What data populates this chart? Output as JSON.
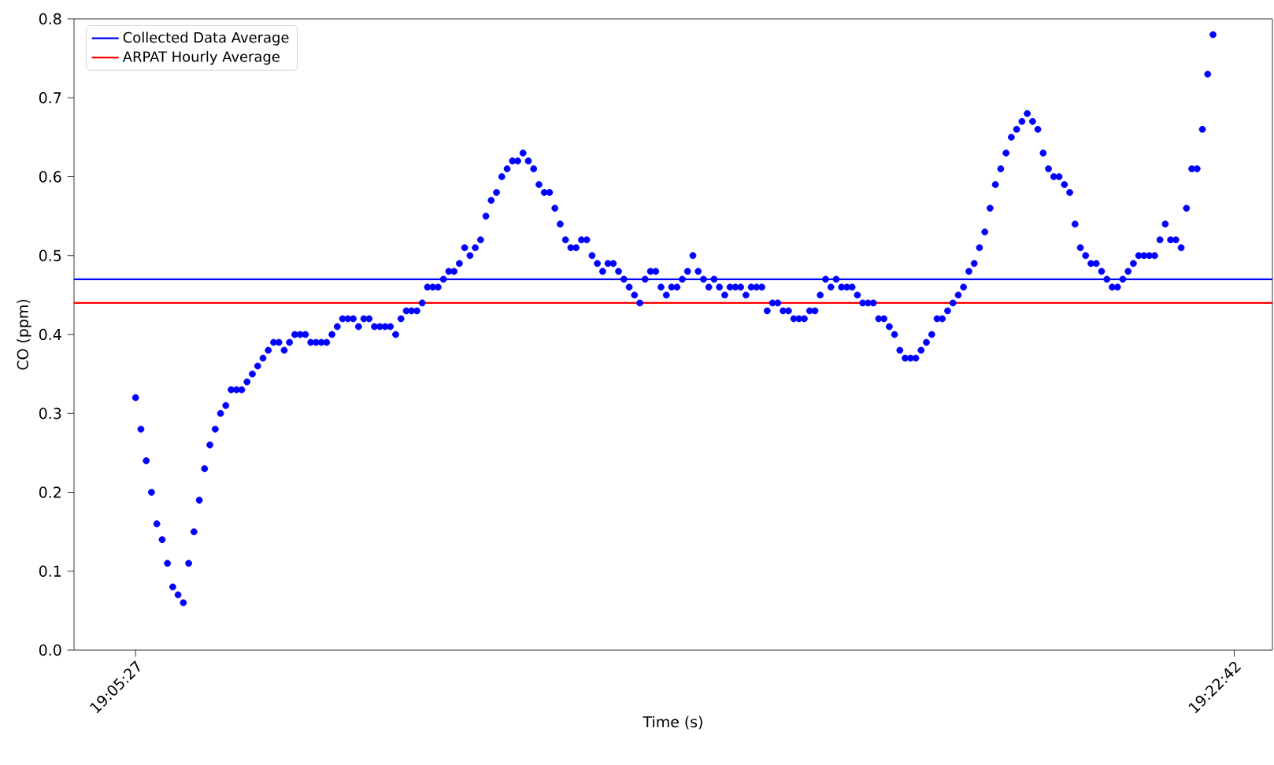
{
  "chart_data": {
    "type": "scatter",
    "xlabel": "Time (s)",
    "ylabel": "CO (ppm)",
    "xlim": [
      19.07472,
      19.38833
    ],
    "xticks": [
      {
        "value": 19.090833,
        "label": "19:05:27"
      },
      {
        "value": 19.378333,
        "label": "19:22:42"
      }
    ],
    "ylim": [
      0,
      0.8
    ],
    "yticks": [
      {
        "value": 0,
        "label": "0.0"
      },
      {
        "value": 0.1,
        "label": "0.1"
      },
      {
        "value": 0.2,
        "label": "0.2"
      },
      {
        "value": 0.3,
        "label": "0.3"
      },
      {
        "value": 0.4,
        "label": "0.4"
      },
      {
        "value": 0.5,
        "label": "0.5"
      },
      {
        "value": 0.6,
        "label": "0.6"
      },
      {
        "value": 0.7,
        "label": "0.7"
      },
      {
        "value": 0.8,
        "label": "0.8"
      }
    ],
    "grid": false,
    "legend": "top left",
    "marker": "circle",
    "ref_lines": [
      {
        "axis": "y",
        "value": 0.47,
        "label": "Collected Data Average",
        "color": "#0000ff"
      },
      {
        "axis": "y",
        "value": 0.44,
        "label": "ARPAT Hourly Average",
        "color": "#ff0000"
      }
    ],
    "series": [
      {
        "color": "#0000ff",
        "x": [
          19.09083,
          19.09222,
          19.09361,
          19.095,
          19.09639,
          19.09778,
          19.09917,
          19.10056,
          19.10194,
          19.10333,
          19.10472,
          19.10611,
          19.1075,
          19.10889,
          19.11028,
          19.11167,
          19.11306,
          19.11444,
          19.11583,
          19.11722,
          19.11861,
          19.12,
          19.12139,
          19.12278,
          19.12417,
          19.12556,
          19.12694,
          19.12833,
          19.12972,
          19.13111,
          19.1325,
          19.13389,
          19.13528,
          19.13667,
          19.13806,
          19.13944,
          19.14083,
          19.14222,
          19.14361,
          19.145,
          19.14639,
          19.14778,
          19.14917,
          19.15056,
          19.15194,
          19.15333,
          19.15472,
          19.15611,
          19.1575,
          19.15889,
          19.16028,
          19.16167,
          19.16306,
          19.16444,
          19.16583,
          19.16722,
          19.16861,
          19.17,
          19.17139,
          19.17278,
          19.17417,
          19.17556,
          19.17694,
          19.17833,
          19.17972,
          19.18111,
          19.1825,
          19.18389,
          19.18528,
          19.18667,
          19.18806,
          19.18944,
          19.19083,
          19.19222,
          19.19361,
          19.195,
          19.19639,
          19.19778,
          19.19917,
          19.20056,
          19.20194,
          19.20333,
          19.20472,
          19.20611,
          19.2075,
          19.20889,
          19.21028,
          19.21167,
          19.21306,
          19.21444,
          19.21583,
          19.21722,
          19.21861,
          19.22,
          19.22139,
          19.22278,
          19.22417,
          19.22556,
          19.22694,
          19.22833,
          19.22972,
          19.23111,
          19.2325,
          19.23389,
          19.23528,
          19.23667,
          19.23806,
          19.23944,
          19.24083,
          19.24222,
          19.24361,
          19.245,
          19.24639,
          19.24778,
          19.24917,
          19.25056,
          19.25194,
          19.25333,
          19.25472,
          19.25611,
          19.2575,
          19.25889,
          19.26028,
          19.26167,
          19.26306,
          19.26444,
          19.26583,
          19.26722,
          19.26861,
          19.27,
          19.27139,
          19.27278,
          19.27417,
          19.27556,
          19.27694,
          19.27833,
          19.27972,
          19.28111,
          19.2825,
          19.28389,
          19.28528,
          19.28667,
          19.28806,
          19.28944,
          19.29083,
          19.29222,
          19.29361,
          19.295,
          19.29639,
          19.29778,
          19.29917,
          19.30056,
          19.30194,
          19.30333,
          19.30472,
          19.30611,
          19.3075,
          19.30889,
          19.31028,
          19.31167,
          19.31306,
          19.31444,
          19.31583,
          19.31722,
          19.31861,
          19.32,
          19.32139,
          19.32278,
          19.32417,
          19.32556,
          19.32694,
          19.32833,
          19.32972,
          19.33111,
          19.3325,
          19.33389,
          19.33528,
          19.33667,
          19.33806,
          19.33944,
          19.34083,
          19.34222,
          19.34361,
          19.345,
          19.34639,
          19.34778,
          19.34917,
          19.35056,
          19.35194,
          19.35333,
          19.35472,
          19.35611,
          19.3575,
          19.35889,
          19.36028,
          19.36167,
          19.36306,
          19.36444,
          19.36583,
          19.36722,
          19.36861,
          19.37,
          19.37139,
          19.37278
        ],
        "values": [
          0.32,
          0.28,
          0.24,
          0.2,
          0.16,
          0.14,
          0.11,
          0.08,
          0.07,
          0.06,
          0.11,
          0.15,
          0.19,
          0.23,
          0.26,
          0.28,
          0.3,
          0.31,
          0.33,
          0.33,
          0.33,
          0.34,
          0.35,
          0.36,
          0.37,
          0.38,
          0.39,
          0.39,
          0.38,
          0.39,
          0.4,
          0.4,
          0.4,
          0.39,
          0.39,
          0.39,
          0.39,
          0.4,
          0.41,
          0.42,
          0.42,
          0.42,
          0.41,
          0.42,
          0.42,
          0.41,
          0.41,
          0.41,
          0.41,
          0.4,
          0.42,
          0.43,
          0.43,
          0.43,
          0.44,
          0.46,
          0.46,
          0.46,
          0.47,
          0.48,
          0.48,
          0.49,
          0.51,
          0.5,
          0.51,
          0.52,
          0.55,
          0.57,
          0.58,
          0.6,
          0.61,
          0.62,
          0.62,
          0.63,
          0.62,
          0.61,
          0.59,
          0.58,
          0.58,
          0.56,
          0.54,
          0.52,
          0.51,
          0.51,
          0.52,
          0.52,
          0.5,
          0.49,
          0.48,
          0.49,
          0.49,
          0.48,
          0.47,
          0.46,
          0.45,
          0.44,
          0.47,
          0.48,
          0.48,
          0.46,
          0.45,
          0.46,
          0.46,
          0.47,
          0.48,
          0.5,
          0.48,
          0.47,
          0.46,
          0.47,
          0.46,
          0.45,
          0.46,
          0.46,
          0.46,
          0.45,
          0.46,
          0.46,
          0.46,
          0.43,
          0.44,
          0.44,
          0.43,
          0.43,
          0.42,
          0.42,
          0.42,
          0.43,
          0.43,
          0.45,
          0.47,
          0.46,
          0.47,
          0.46,
          0.46,
          0.46,
          0.45,
          0.44,
          0.44,
          0.44,
          0.42,
          0.42,
          0.41,
          0.4,
          0.38,
          0.37,
          0.37,
          0.37,
          0.38,
          0.39,
          0.4,
          0.42,
          0.42,
          0.43,
          0.44,
          0.45,
          0.46,
          0.48,
          0.49,
          0.51,
          0.53,
          0.56,
          0.59,
          0.61,
          0.63,
          0.65,
          0.66,
          0.67,
          0.68,
          0.67,
          0.66,
          0.63,
          0.61,
          0.6,
          0.6,
          0.59,
          0.58,
          0.54,
          0.51,
          0.5,
          0.49,
          0.49,
          0.48,
          0.47,
          0.46,
          0.46,
          0.47,
          0.48,
          0.49,
          0.5,
          0.5,
          0.5,
          0.5,
          0.52,
          0.54,
          0.52,
          0.52,
          0.51,
          0.56,
          0.61,
          0.61,
          0.66,
          0.73,
          0.78
        ]
      }
    ]
  }
}
